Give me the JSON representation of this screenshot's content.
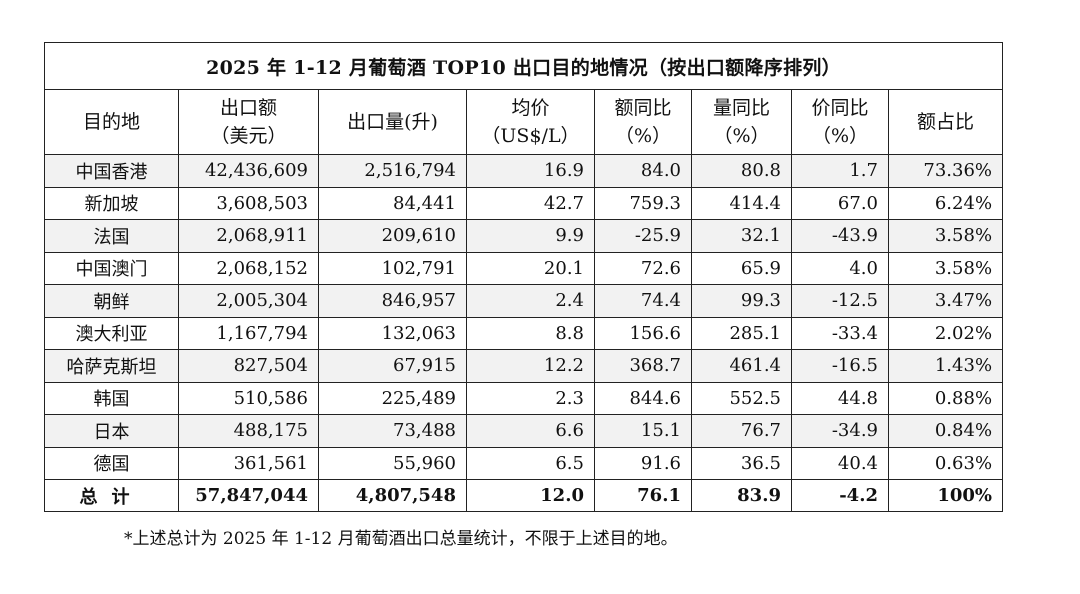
{
  "title": "2025 年 1-12 月葡萄酒  TOP10 出口目的地情况（按出口额降序排列）",
  "columns": [
    {
      "line1": "目的地",
      "line2": ""
    },
    {
      "line1": "出口额",
      "line2": "（美元）"
    },
    {
      "line1": "出口量(升)",
      "line2": ""
    },
    {
      "line1": "均价",
      "line2": "（US$/L）"
    },
    {
      "line1": "额同比",
      "line2": "（%）"
    },
    {
      "line1": "量同比",
      "line2": "（%）"
    },
    {
      "line1": "价同比",
      "line2": "（%）"
    },
    {
      "line1": "额占比",
      "line2": ""
    }
  ],
  "rows": [
    [
      "中国香港",
      "42,436,609",
      "2,516,794",
      "16.9",
      "84.0",
      "80.8",
      "1.7",
      "73.36%"
    ],
    [
      "新加坡",
      "3,608,503",
      "84,441",
      "42.7",
      "759.3",
      "414.4",
      "67.0",
      "6.24%"
    ],
    [
      "法国",
      "2,068,911",
      "209,610",
      "9.9",
      "-25.9",
      "32.1",
      "-43.9",
      "3.58%"
    ],
    [
      "中国澳门",
      "2,068,152",
      "102,791",
      "20.1",
      "72.6",
      "65.9",
      "4.0",
      "3.58%"
    ],
    [
      "朝鲜",
      "2,005,304",
      "846,957",
      "2.4",
      "74.4",
      "99.3",
      "-12.5",
      "3.47%"
    ],
    [
      "澳大利亚",
      "1,167,794",
      "132,063",
      "8.8",
      "156.6",
      "285.1",
      "-33.4",
      "2.02%"
    ],
    [
      "哈萨克斯坦",
      "827,504",
      "67,915",
      "12.2",
      "368.7",
      "461.4",
      "-16.5",
      "1.43%"
    ],
    [
      "韩国",
      "510,586",
      "225,489",
      "2.3",
      "844.6",
      "552.5",
      "44.8",
      "0.88%"
    ],
    [
      "日本",
      "488,175",
      "73,488",
      "6.6",
      "15.1",
      "76.7",
      "-34.9",
      "0.84%"
    ],
    [
      "德国",
      "361,561",
      "55,960",
      "6.5",
      "91.6",
      "36.5",
      "40.4",
      "0.63%"
    ]
  ],
  "total": [
    "总计",
    "57,847,044",
    "4,807,548",
    "12.0",
    "76.1",
    "83.9",
    "-4.2",
    "100%"
  ],
  "note": "*上述总计为 2025 年 1-12 月葡萄酒出口总量统计，不限于上述目的地。"
}
